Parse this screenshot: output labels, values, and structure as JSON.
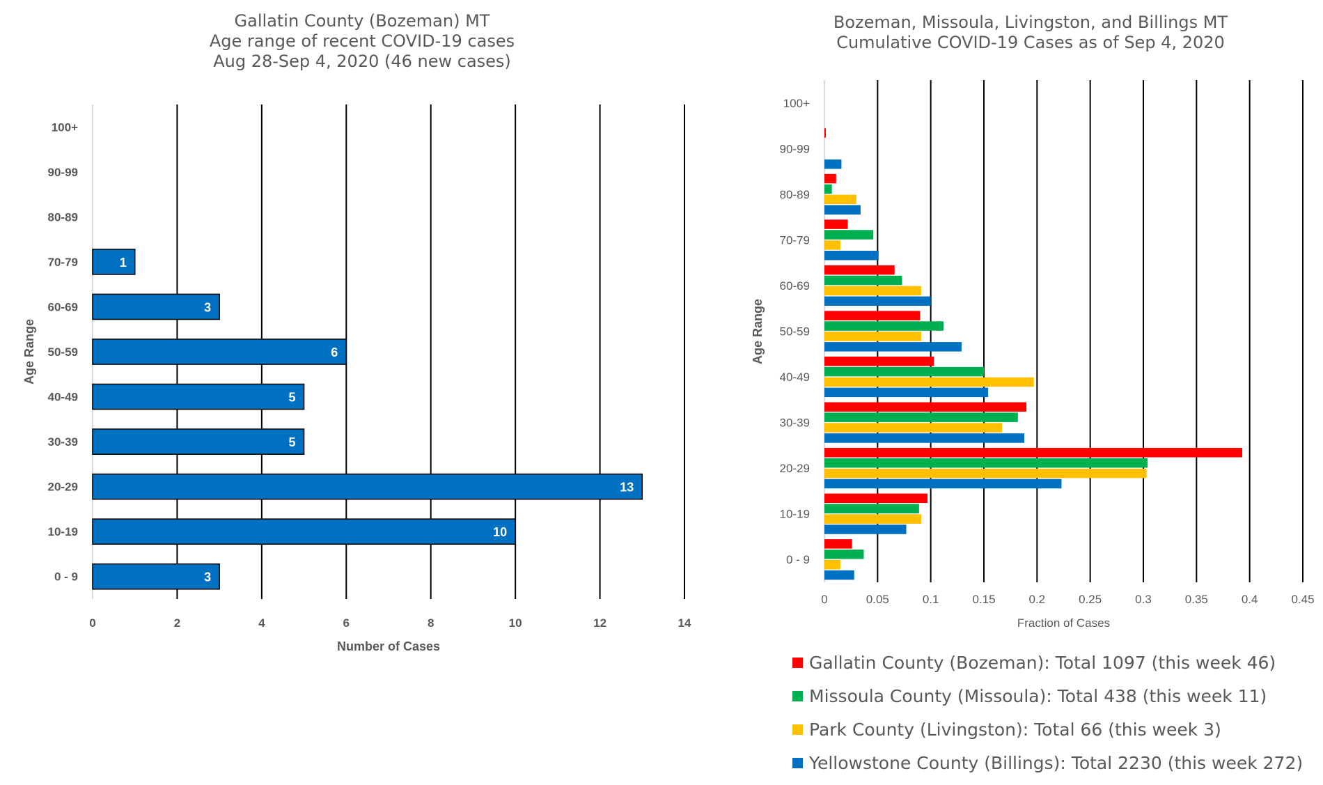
{
  "chart_data": [
    {
      "type": "bar",
      "orientation": "horizontal",
      "title": [
        "Gallatin County (Bozeman) MT",
        "Age range of recent COVID-19 cases",
        "Aug 28-Sep 4, 2020 (46 new cases)"
      ],
      "xlabel": "Number of Cases",
      "ylabel": "Age Range",
      "categories": [
        "0 - 9",
        "10-19",
        "20-29",
        "30-39",
        "40-49",
        "50-59",
        "60-69",
        "70-79",
        "80-89",
        "90-99",
        "100+"
      ],
      "values": [
        3,
        10,
        13,
        5,
        5,
        6,
        3,
        1,
        null,
        null,
        null
      ],
      "xlim": [
        0,
        14
      ],
      "xticks": [
        0,
        2,
        4,
        6,
        8,
        10,
        12,
        14
      ],
      "grid": "vertical",
      "data_labels": true,
      "bar_color": "#0070C0"
    },
    {
      "type": "bar",
      "orientation": "horizontal",
      "title": [
        "Bozeman, Missoula, Livingston, and Billings MT",
        "Cumulative COVID-19 Cases as of Sep 4, 2020"
      ],
      "xlabel": "Fraction of Cases",
      "ylabel": "Age Range",
      "categories": [
        "0 - 9",
        "10-19",
        "20-29",
        "30-39",
        "40-49",
        "50-59",
        "60-69",
        "70-79",
        "80-89",
        "90-99",
        "100+"
      ],
      "xlim": [
        0,
        0.45
      ],
      "xticks": [
        0,
        0.05,
        0.1,
        0.15,
        0.2,
        0.25,
        0.3,
        0.35,
        0.4,
        0.45
      ],
      "xtick_labels": [
        "0",
        "0.05",
        "0.1",
        "0.15",
        "0.2",
        "0.25",
        "0.3",
        "0.35",
        "0.4",
        "0.45"
      ],
      "grid": "vertical",
      "legend_position": "bottom",
      "series": [
        {
          "name": "Gallatin County (Bozeman): Total 1097 (this week 46)",
          "color": "#FF0000",
          "values": [
            0.026,
            0.097,
            0.393,
            0.19,
            0.103,
            0.09,
            0.066,
            0.022,
            0.011,
            0.001,
            0
          ]
        },
        {
          "name": "Missoula County (Missoula): Total 438 (this week 11)",
          "color": "#00B050",
          "values": [
            0.037,
            0.089,
            0.304,
            0.182,
            0.15,
            0.112,
            0.073,
            0.046,
            0.007,
            0,
            0
          ]
        },
        {
          "name": "Park County (Livingston): Total 66 (this week 3)",
          "color": "#FFC000",
          "values": [
            0.015,
            0.091,
            0.303,
            0.167,
            0.197,
            0.091,
            0.091,
            0.015,
            0.03,
            0,
            0
          ]
        },
        {
          "name": "Yellowstone County (Billings): Total 2230 (this week 272)",
          "color": "#0070C0",
          "values": [
            0.028,
            0.077,
            0.223,
            0.188,
            0.154,
            0.129,
            0.1,
            0.051,
            0.034,
            0.016,
            0
          ]
        }
      ]
    }
  ]
}
